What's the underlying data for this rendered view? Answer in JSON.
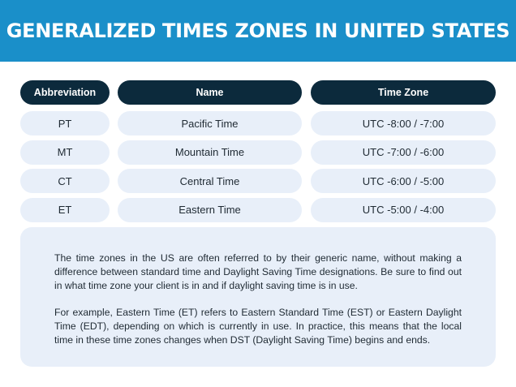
{
  "page": {
    "title": "GENERALIZED TIMES ZONES IN UNITED STATES",
    "banner_color": "#1a8fc9",
    "header_cell_color": "#0c2a3c",
    "cell_color": "#e8eff9"
  },
  "table": {
    "headers": {
      "abbreviation": "Abbreviation",
      "name": "Name",
      "time_zone": "Time Zone"
    },
    "rows": [
      {
        "abbreviation": "PT",
        "name": "Pacific Time",
        "time_zone": "UTC -8:00 / -7:00"
      },
      {
        "abbreviation": "MT",
        "name": "Mountain Time",
        "time_zone": "UTC -7:00 / -6:00"
      },
      {
        "abbreviation": "CT",
        "name": "Central Time",
        "time_zone": "UTC -6:00 / -5:00"
      },
      {
        "abbreviation": "ET",
        "name": "Eastern Time",
        "time_zone": "UTC -5:00 / -4:00"
      }
    ]
  },
  "info": {
    "paragraph_1": "The time zones in the US are often referred to by their generic name, without making a difference between standard time and Daylight Saving Time designations. Be sure to find out in what time zone your client is in and if daylight saving time is in use.",
    "paragraph_2": "For example, Eastern Time (ET) refers to Eastern Standard Time (EST) or Eastern Daylight Time (EDT), depending on which is currently in use. In practice, this means that the local time in these time zones changes when DST (Daylight Saving Time) begins and ends."
  }
}
